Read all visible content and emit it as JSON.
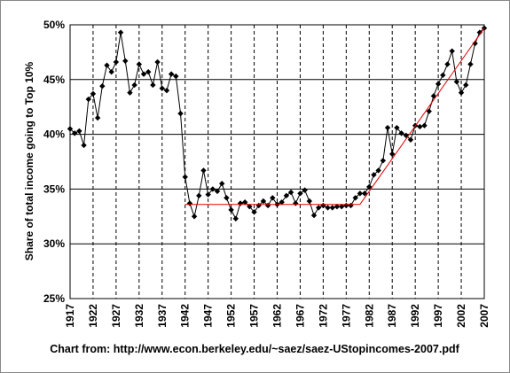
{
  "chart_data": {
    "type": "line",
    "y_label": "Share of total income going to Top 10%",
    "source": "Chart from: http://www.econ.berkeley.edu/~saez/saez-UStopincomes-2007.pdf",
    "xlim": [
      1917,
      2007
    ],
    "xticks": [
      1917,
      1922,
      1927,
      1932,
      1937,
      1942,
      1947,
      1952,
      1957,
      1962,
      1967,
      1972,
      1977,
      1982,
      1987,
      1992,
      1997,
      2002,
      2007
    ],
    "ylim": [
      25,
      50
    ],
    "yticks": [
      {
        "value": 25,
        "label": "25%"
      },
      {
        "value": 30,
        "label": "30%"
      },
      {
        "value": 35,
        "label": "35%"
      },
      {
        "value": 40,
        "label": "40%"
      },
      {
        "value": 45,
        "label": "45%"
      },
      {
        "value": 50,
        "label": "50%"
      }
    ],
    "grid": true,
    "series": [
      {
        "color": "#000000",
        "marker": "diamond",
        "x": [
          1917,
          1918,
          1919,
          1920,
          1921,
          1922,
          1923,
          1924,
          1925,
          1926,
          1927,
          1928,
          1929,
          1930,
          1931,
          1932,
          1933,
          1934,
          1935,
          1936,
          1937,
          1938,
          1939,
          1940,
          1941,
          1942,
          1943,
          1944,
          1945,
          1946,
          1947,
          1948,
          1949,
          1950,
          1951,
          1952,
          1953,
          1954,
          1955,
          1956,
          1957,
          1958,
          1959,
          1960,
          1961,
          1962,
          1963,
          1964,
          1965,
          1966,
          1967,
          1968,
          1969,
          1970,
          1971,
          1972,
          1973,
          1974,
          1975,
          1976,
          1977,
          1978,
          1979,
          1980,
          1981,
          1982,
          1983,
          1984,
          1985,
          1986,
          1987,
          1988,
          1989,
          1990,
          1991,
          1992,
          1993,
          1994,
          1995,
          1996,
          1997,
          1998,
          1999,
          2000,
          2001,
          2002,
          2003,
          2004,
          2005,
          2006,
          2007
        ],
        "values": [
          40.5,
          40.1,
          40.3,
          39.0,
          43.2,
          43.7,
          41.5,
          44.4,
          46.3,
          45.7,
          46.6,
          49.3,
          46.7,
          43.8,
          44.5,
          46.4,
          45.5,
          45.7,
          44.5,
          46.6,
          44.2,
          44.0,
          45.5,
          45.3,
          41.9,
          36.1,
          33.7,
          32.5,
          34.4,
          36.7,
          34.5,
          35.0,
          34.8,
          35.5,
          34.2,
          33.1,
          32.3,
          33.7,
          33.8,
          33.4,
          32.9,
          33.5,
          33.9,
          33.5,
          34.2,
          33.6,
          33.8,
          34.4,
          34.7,
          33.7,
          34.6,
          34.9,
          33.9,
          32.6,
          33.3,
          33.5,
          33.3,
          33.3,
          33.4,
          33.4,
          33.5,
          33.5,
          34.2,
          34.6,
          34.6,
          35.2,
          36.3,
          36.7,
          37.6,
          40.6,
          38.2,
          40.6,
          40.1,
          39.9,
          39.5,
          40.8,
          40.7,
          40.8,
          42.1,
          43.5,
          44.6,
          45.4,
          46.4,
          47.6,
          44.8,
          43.8,
          44.5,
          46.4,
          48.3,
          49.3,
          49.7
        ]
      },
      {
        "color": "#e00000",
        "x": [
          1942,
          1980
        ],
        "values": [
          33.6,
          33.6
        ]
      },
      {
        "color": "#e00000",
        "x": [
          1980,
          2007
        ],
        "values": [
          33.6,
          49.7
        ]
      }
    ]
  }
}
